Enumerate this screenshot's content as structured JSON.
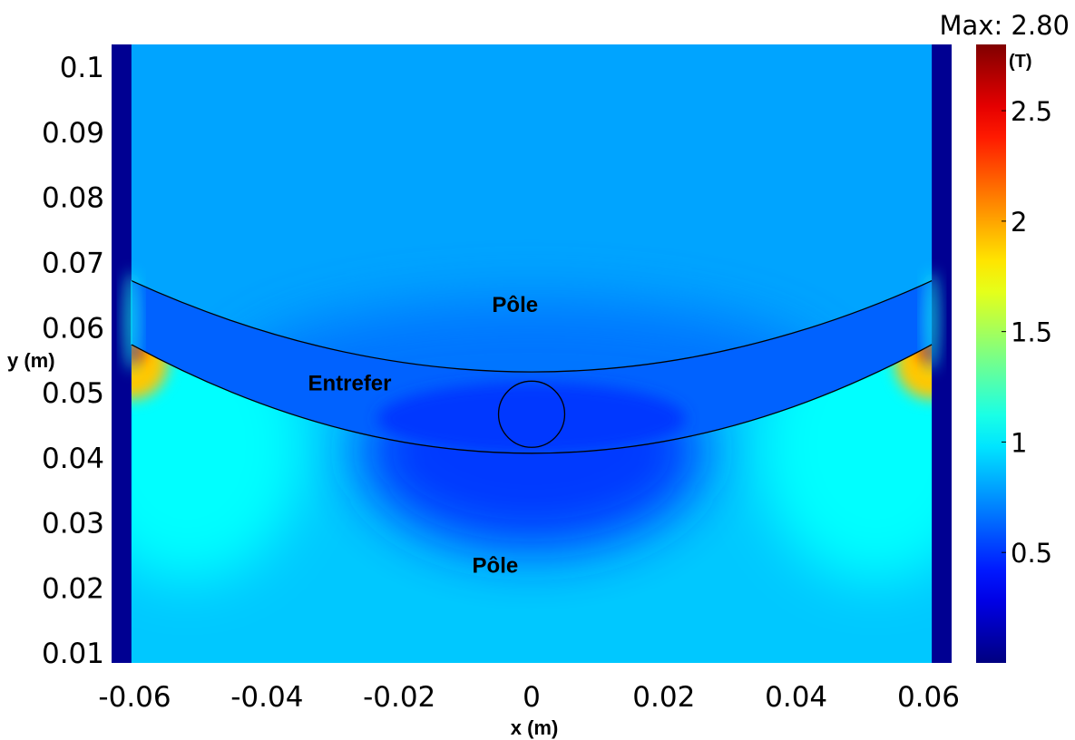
{
  "chart_data": {
    "type": "heatmap",
    "xlabel": "x (m)",
    "ylabel": "y (m)",
    "xlim": [
      -0.0635,
      0.0635
    ],
    "ylim": [
      0.0085,
      0.1035
    ],
    "x_ticks": [
      -0.06,
      -0.04,
      -0.02,
      0,
      0.02,
      0.04,
      0.06
    ],
    "x_tick_labels": [
      "-0.06",
      "-0.04",
      "-0.02",
      "0",
      "0.02",
      "0.04",
      "0.06"
    ],
    "y_ticks": [
      0.01,
      0.02,
      0.03,
      0.04,
      0.05,
      0.06,
      0.07,
      0.08,
      0.09,
      0.1
    ],
    "y_tick_labels": [
      "0.01",
      "0.02",
      "0.03",
      "0.04",
      "0.05",
      "0.06",
      "0.07",
      "0.08",
      "0.09",
      "0.1"
    ],
    "colorbar": {
      "max_label": "Max: 2.80",
      "unit": "(T)",
      "range": [
        0,
        2.8
      ],
      "ticks": [
        0.5,
        1,
        1.5,
        2,
        2.5
      ],
      "tick_labels": [
        "0.5",
        "1",
        "1.5",
        "2",
        "2.5"
      ],
      "colormap": "jet"
    },
    "annotations": [
      {
        "text": "Pôle",
        "x": -0.0025,
        "y": 0.0635
      },
      {
        "text": "Entrefer",
        "x": -0.0275,
        "y": 0.0515
      },
      {
        "text": "Pôle",
        "x": -0.0055,
        "y": 0.0235
      }
    ],
    "geometry": {
      "upper_pole_edge": {
        "x_ends": [
          -0.0605,
          0.0605
        ],
        "y_ends": 0.0672,
        "y_center": 0.0532
      },
      "lower_pole_edge": {
        "x_ends": [
          -0.0605,
          0.0605
        ],
        "y_ends": 0.0574,
        "y_center": 0.0407
      },
      "circle": {
        "cx": 0.0,
        "cy": 0.0467,
        "r": 0.005
      },
      "side_bars_x": [
        [
          -0.0635,
          -0.0605
        ],
        [
          0.0605,
          0.0635
        ]
      ]
    },
    "field_levels_T": {
      "side_bars": 0.05,
      "upper_pole": 0.8,
      "air_gap": 0.62,
      "lower_pole": 0.9,
      "lower_pole_center_min": 0.45,
      "lower_pole_corner_max": 2.8,
      "lower_pole_edge": 1.05
    }
  },
  "colors": {
    "colormap_stops": [
      "#00007f",
      "#0000ff",
      "#00ffff",
      "#ffff00",
      "#ff0000",
      "#7f0000"
    ]
  }
}
